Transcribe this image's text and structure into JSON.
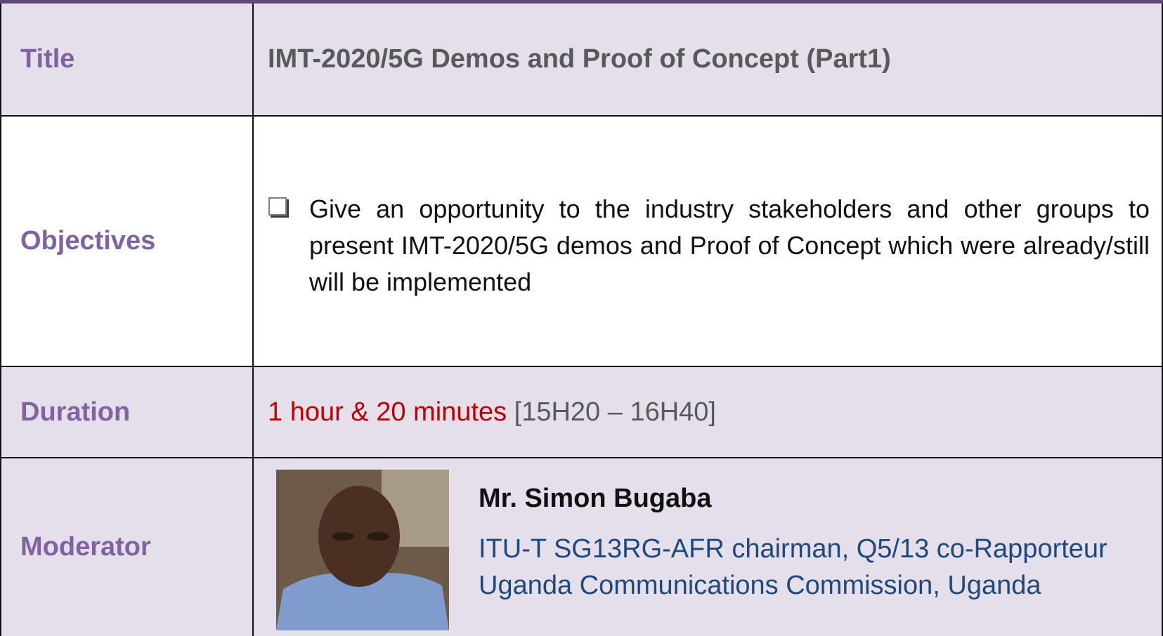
{
  "table": {
    "rows": [
      {
        "label": "Title",
        "text": "IMT-2020/5G Demos and Proof of Concept (Part1)"
      },
      {
        "label": "Objectives",
        "bullet": "Give an opportunity to the industry stakeholders and other groups to present IMT-2020/5G demos and Proof of Concept which were already/still will be implemented"
      },
      {
        "label": "Duration",
        "duration": "1 hour & 20 minutes",
        "time": "[15H20 – 16H40]"
      },
      {
        "label": "Moderator",
        "name": "Mr. Simon Bugaba",
        "role": "ITU-T SG13RG-AFR chairman, Q5/13 co-Rapporteur",
        "organization": "Uganda Communications Commission, Uganda"
      }
    ]
  }
}
